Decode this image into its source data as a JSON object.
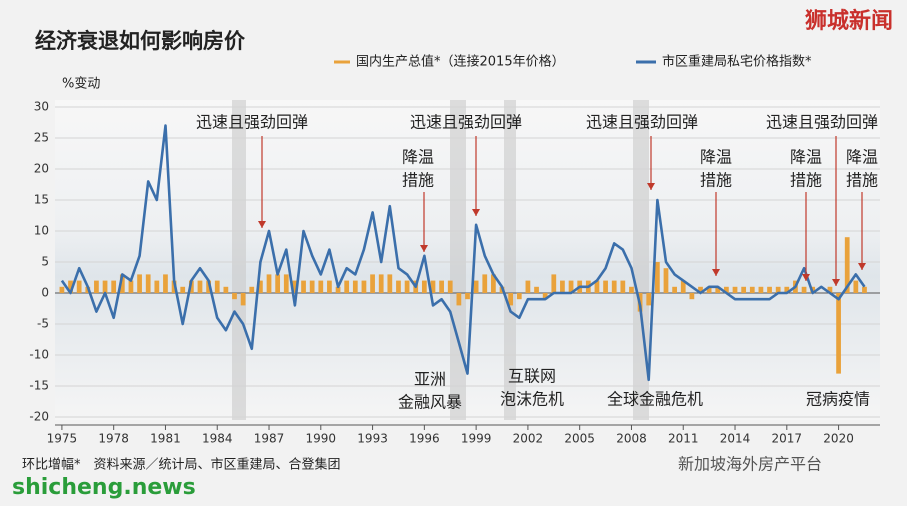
{
  "chart_data": {
    "type": "bar",
    "title": "经济衰退如何影响房价",
    "y_label": "%变动",
    "footnote": "环比增幅*　资料来源／统计局、市区重建局、合登集团",
    "watermarks": [
      "狮城新闻",
      "shicheng.news",
      "新加坡海外房产平台"
    ],
    "xlim": [
      1974.6,
      2022.4
    ],
    "ylim": [
      -20,
      30
    ],
    "yticks": [
      -20,
      -15,
      -10,
      -5,
      0,
      5,
      10,
      15,
      20,
      25,
      30
    ],
    "xticks": [
      1975,
      1978,
      1981,
      1984,
      1987,
      1990,
      1993,
      1996,
      1999,
      2002,
      2005,
      2008,
      2011,
      2014,
      2017,
      2020
    ],
    "grid": true,
    "x": [
      1975,
      1975.5,
      1976,
      1976.5,
      1977,
      1977.5,
      1978,
      1978.5,
      1979,
      1979.5,
      1980,
      1980.5,
      1981,
      1981.5,
      1982,
      1982.5,
      1983,
      1983.5,
      1984,
      1984.5,
      1985,
      1985.5,
      1986,
      1986.5,
      1987,
      1987.5,
      1988,
      1988.5,
      1989,
      1989.5,
      1990,
      1990.5,
      1991,
      1991.5,
      1992,
      1992.5,
      1993,
      1993.5,
      1994,
      1994.5,
      1995,
      1995.5,
      1996,
      1996.5,
      1997,
      1997.5,
      1998,
      1998.5,
      1999,
      1999.5,
      2000,
      2000.5,
      2001,
      2001.5,
      2002,
      2002.5,
      2003,
      2003.5,
      2004,
      2004.5,
      2005,
      2005.5,
      2006,
      2006.5,
      2007,
      2007.5,
      2008,
      2008.5,
      2009,
      2009.5,
      2010,
      2010.5,
      2011,
      2011.5,
      2012,
      2012.5,
      2013,
      2013.5,
      2014,
      2014.5,
      2015,
      2015.5,
      2016,
      2016.5,
      2017,
      2017.5,
      2018,
      2018.5,
      2019,
      2019.5,
      2020,
      2020.5,
      2021,
      2021.5
    ],
    "series": [
      {
        "name": "国内生产总值*（连接2015年价格）",
        "type": "bar",
        "color": "#e9a23b",
        "values": [
          1,
          2,
          2,
          1,
          2,
          2,
          2,
          3,
          2,
          3,
          3,
          2,
          3,
          2,
          1,
          2,
          2,
          2,
          2,
          1,
          -1,
          -2,
          1,
          2,
          3,
          3,
          3,
          2,
          2,
          2,
          2,
          2,
          1,
          2,
          2,
          2,
          3,
          3,
          3,
          2,
          2,
          2,
          2,
          2,
          2,
          2,
          -2,
          -1,
          2,
          3,
          3,
          1,
          -2,
          -1,
          2,
          1,
          -1,
          3,
          2,
          2,
          2,
          2,
          2,
          2,
          2,
          2,
          1,
          -3,
          -2,
          5,
          4,
          1,
          2,
          -1,
          1,
          1,
          1,
          1,
          1,
          1,
          1,
          1,
          1,
          1,
          1,
          2,
          1,
          1,
          0,
          1,
          -13,
          9,
          2,
          1
        ]
      },
      {
        "name": "市区重建局私宅价格指数*",
        "type": "line",
        "color": "#3b6fab",
        "values": [
          2,
          0,
          4,
          1,
          -3,
          0,
          -4,
          3,
          2,
          6,
          18,
          15,
          27,
          2,
          -5,
          2,
          4,
          2,
          -4,
          -6,
          -3,
          -5,
          -9,
          5,
          10,
          3,
          7,
          -2,
          10,
          6,
          3,
          7,
          1,
          4,
          3,
          7,
          13,
          5,
          14,
          4,
          3,
          1,
          6,
          -2,
          -1,
          -3,
          -8,
          -13,
          11,
          6,
          3,
          1,
          -3,
          -4,
          -1,
          -1,
          -1,
          0,
          0,
          0,
          1,
          1,
          2,
          4,
          8,
          7,
          4,
          -2,
          -14,
          15,
          5,
          3,
          2,
          1,
          0,
          1,
          1,
          0,
          -1,
          -1,
          -1,
          -1,
          -1,
          0,
          0,
          1,
          4,
          0,
          1,
          0,
          -1,
          1,
          3,
          1
        ]
      }
    ],
    "annotations": [
      {
        "lines": [
          "迅速且强劲回弹"
        ]
      },
      {
        "lines": [
          "降温",
          "措施"
        ]
      },
      {
        "lines": [
          "迅速且强劲回弹"
        ]
      },
      {
        "lines": [
          "亚洲",
          "金融风暴"
        ]
      },
      {
        "lines": [
          "互联网",
          "泡沫危机"
        ]
      },
      {
        "lines": [
          "迅速且强劲回弹"
        ]
      },
      {
        "lines": [
          "全球金融危机"
        ]
      },
      {
        "lines": [
          "降温",
          "措施"
        ]
      },
      {
        "lines": [
          "迅速且强劲回弹"
        ]
      },
      {
        "lines": [
          "降温",
          "措施"
        ]
      },
      {
        "lines": [
          "降温",
          "措施"
        ]
      },
      {
        "lines": [
          "冠病疫情"
        ]
      }
    ]
  }
}
